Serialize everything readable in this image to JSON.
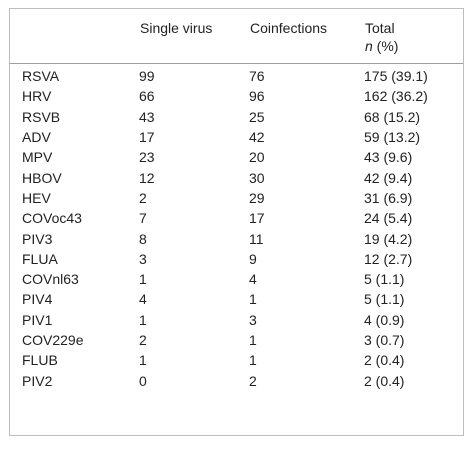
{
  "table": {
    "headers": {
      "virus": "",
      "single": "Single virus",
      "coinfections": "Coinfections",
      "total_line1": "Total",
      "total_n": "n",
      "total_pct": " (%)"
    },
    "rows": [
      {
        "virus": "RSVA",
        "single": "99",
        "coinfections": "76",
        "total": "175 (39.1)"
      },
      {
        "virus": "HRV",
        "single": "66",
        "coinfections": "96",
        "total": "162 (36.2)"
      },
      {
        "virus": "RSVB",
        "single": "43",
        "coinfections": "25",
        "total": "68 (15.2)"
      },
      {
        "virus": "ADV",
        "single": "17",
        "coinfections": "42",
        "total": "59 (13.2)"
      },
      {
        "virus": "MPV",
        "single": "23",
        "coinfections": "20",
        "total": "43 (9.6)"
      },
      {
        "virus": "HBOV",
        "single": "12",
        "coinfections": "30",
        "total": "42 (9.4)"
      },
      {
        "virus": "HEV",
        "single": "2",
        "coinfections": "29",
        "total": "31 (6.9)"
      },
      {
        "virus": "COVoc43",
        "single": "7",
        "coinfections": "17",
        "total": "24 (5.4)"
      },
      {
        "virus": "PIV3",
        "single": "8",
        "coinfections": "11",
        "total": "19 (4.2)"
      },
      {
        "virus": "FLUA",
        "single": "3",
        "coinfections": "9",
        "total": "12 (2.7)"
      },
      {
        "virus": "COVnl63",
        "single": "1",
        "coinfections": "4",
        "total": "5 (1.1)"
      },
      {
        "virus": "PIV4",
        "single": "4",
        "coinfections": "1",
        "total": "5 (1.1)"
      },
      {
        "virus": "PIV1",
        "single": "1",
        "coinfections": "3",
        "total": "4 (0.9)"
      },
      {
        "virus": "COV229e",
        "single": "2",
        "coinfections": "1",
        "total": "3 (0.7)"
      },
      {
        "virus": "FLUB",
        "single": "1",
        "coinfections": "1",
        "total": "2 (0.4)"
      },
      {
        "virus": "PIV2",
        "single": "0",
        "coinfections": "2",
        "total": "2 (0.4)"
      }
    ]
  }
}
